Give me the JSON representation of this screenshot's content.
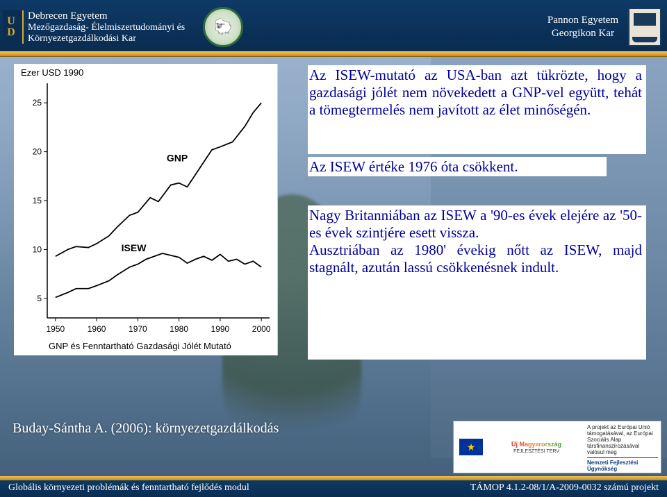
{
  "header": {
    "left_logo_letters": "U D",
    "left_line1": "Debrecen Egyetem",
    "left_line2": "Mezőgazdaság- Élelmiszertudományi és",
    "left_line3": "Környezetgazdálkodási Kar",
    "right_line1": "Pannon Egyetem",
    "right_line2": "Georgikon Kar",
    "header_bg": "#0a2d52",
    "header_accent": "#d8a830"
  },
  "chart": {
    "type": "line",
    "y_axis_label": "Ezer USD 1990",
    "x_axis_label": "",
    "caption": "GNP és Fenntartható Gazdasági Jólét Mutató",
    "series_labels": {
      "gnp": "GNP",
      "isew": "ISEW"
    },
    "x_ticks": [
      1950,
      1960,
      1970,
      1980,
      1990,
      2000
    ],
    "y_ticks": [
      5,
      10,
      15,
      20,
      25
    ],
    "ylim": [
      3,
      27
    ],
    "xlim": [
      1948,
      2002
    ],
    "gnp_points": [
      [
        1950,
        9.3
      ],
      [
        1953,
        10.0
      ],
      [
        1955,
        10.3
      ],
      [
        1958,
        10.2
      ],
      [
        1960,
        10.6
      ],
      [
        1963,
        11.4
      ],
      [
        1965,
        12.3
      ],
      [
        1968,
        13.5
      ],
      [
        1970,
        13.8
      ],
      [
        1973,
        15.3
      ],
      [
        1975,
        14.9
      ],
      [
        1978,
        16.6
      ],
      [
        1980,
        16.8
      ],
      [
        1982,
        16.4
      ],
      [
        1985,
        18.3
      ],
      [
        1988,
        20.2
      ],
      [
        1990,
        20.5
      ],
      [
        1993,
        21.0
      ],
      [
        1996,
        22.6
      ],
      [
        1998,
        24.0
      ],
      [
        2000,
        25.0
      ]
    ],
    "isew_points": [
      [
        1950,
        5.1
      ],
      [
        1953,
        5.6
      ],
      [
        1955,
        6.0
      ],
      [
        1958,
        6.0
      ],
      [
        1960,
        6.3
      ],
      [
        1963,
        6.8
      ],
      [
        1965,
        7.4
      ],
      [
        1968,
        8.2
      ],
      [
        1970,
        8.5
      ],
      [
        1972,
        9.0
      ],
      [
        1974,
        9.3
      ],
      [
        1976,
        9.6
      ],
      [
        1978,
        9.4
      ],
      [
        1980,
        9.2
      ],
      [
        1982,
        8.6
      ],
      [
        1984,
        9.0
      ],
      [
        1986,
        9.3
      ],
      [
        1988,
        8.9
      ],
      [
        1990,
        9.5
      ],
      [
        1992,
        8.8
      ],
      [
        1994,
        9.0
      ],
      [
        1996,
        8.5
      ],
      [
        1998,
        8.8
      ],
      [
        2000,
        8.2
      ]
    ],
    "line_color": "#000000",
    "line_width": 1.8,
    "background_color": "#ffffff",
    "tick_fontsize": 12,
    "label_fontsize": 13
  },
  "text": {
    "para1": "Az ISEW-mutató az USA-ban azt tükrözte, hogy a gazdasági jólét nem növekedett a GNP-vel együtt, tehát a tömegtermelés nem javított az élet minőségén.",
    "para2": "Az ISEW értéke 1976 óta csökkent.",
    "para3": "Nagy Britanniában az ISEW a '90-es évek elejére az '50-es évek szintjére esett vissza.\nAusztriában az 1980' évekig nőtt az ISEW, majd stagnált, azután lassú csökkenésnek indult.",
    "text_color": "#00009a",
    "text_bg": "#ffffff",
    "fontsize": 21
  },
  "citation": "Buday-Sántha A. (2006): környezetgazdálkodás",
  "footer": {
    "left": "Globális környezeti problémák és fenntartható fejlődés modul",
    "right": "TÁMOP 4.1.2-08/1/A-2009-0032 számú projekt",
    "bg": "#0a2d52",
    "accent": "#d8a830"
  },
  "sponsor": {
    "title": "Új Magyarország",
    "subtitle": "FEJLESZTÉSI TERV",
    "line1": "A projekt az Európai Unió támogatásával, az Európai",
    "line2": "Szociális Alap társfinanszírozásával valósul meg",
    "nfu": "Nemzeti Fejlesztési Ügynökség"
  }
}
